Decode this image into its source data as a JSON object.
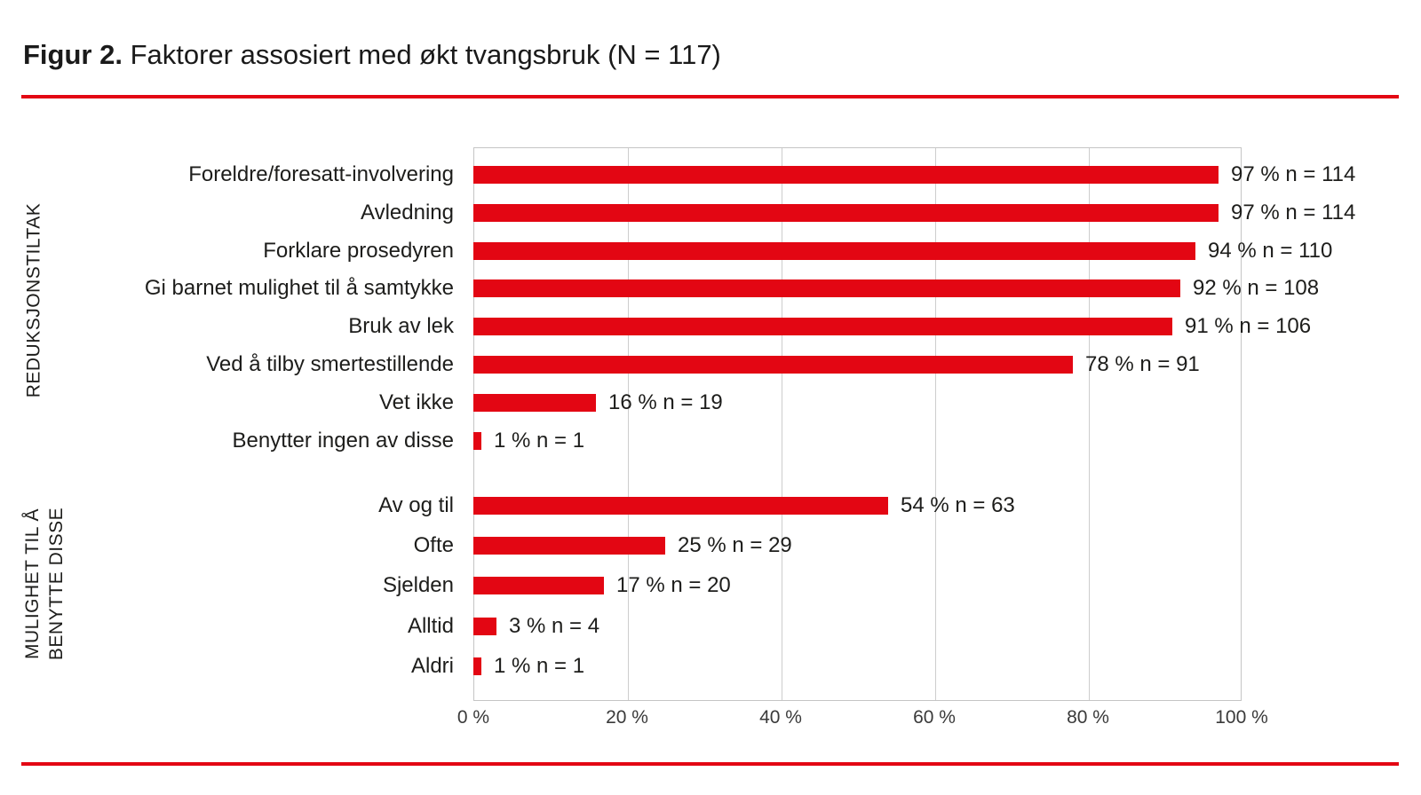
{
  "title": {
    "prefix": "Figur 2.",
    "text": "Faktorer assosiert med økt tvangsbruk (N = 117)"
  },
  "colors": {
    "bar": "#e30613",
    "rule": "#e30613",
    "grid": "#cdcdcd",
    "text": "#1d1d1b"
  },
  "chart_data": {
    "type": "bar",
    "orientation": "horizontal",
    "title": "Figur 2. Faktorer assosiert med økt tvangsbruk (N = 117)",
    "N": 117,
    "xlim": [
      0,
      100
    ],
    "grid": true,
    "x_ticks": [
      {
        "value": 0,
        "label": "0 %"
      },
      {
        "value": 20,
        "label": "20 %"
      },
      {
        "value": 40,
        "label": "40 %"
      },
      {
        "value": 60,
        "label": "60 %"
      },
      {
        "value": 80,
        "label": "80 %"
      },
      {
        "value": 100,
        "label": "100 %"
      }
    ],
    "groups": [
      {
        "name": "REDUKSJONSTILTAK",
        "name_lines": [
          "REDUKSJONSTILTAK"
        ],
        "items": [
          {
            "label": "Foreldre/foresatt-involvering",
            "pct": 97,
            "n": 114,
            "value_label": "97 % n = 114"
          },
          {
            "label": "Avledning",
            "pct": 97,
            "n": 114,
            "value_label": "97 % n = 114"
          },
          {
            "label": "Forklare prosedyren",
            "pct": 94,
            "n": 110,
            "value_label": "94 % n = 110"
          },
          {
            "label": "Gi barnet mulighet til å samtykke",
            "pct": 92,
            "n": 108,
            "value_label": "92 % n = 108"
          },
          {
            "label": "Bruk av lek",
            "pct": 91,
            "n": 106,
            "value_label": "91 % n = 106"
          },
          {
            "label": "Ved å tilby smertestillende",
            "pct": 78,
            "n": 91,
            "value_label": "78 % n = 91"
          },
          {
            "label": "Vet ikke",
            "pct": 16,
            "n": 19,
            "value_label": "16 % n = 19"
          },
          {
            "label": "Benytter ingen av disse",
            "pct": 1,
            "n": 1,
            "value_label": "1 % n = 1"
          }
        ]
      },
      {
        "name": "MULIGHET TIL Å BENYTTE DISSE",
        "name_lines": [
          "MULIGHET TIL Å",
          "BENYTTE DISSE"
        ],
        "items": [
          {
            "label": "Av og til",
            "pct": 54,
            "n": 63,
            "value_label": "54 % n = 63"
          },
          {
            "label": "Ofte",
            "pct": 25,
            "n": 29,
            "value_label": "25 % n = 29"
          },
          {
            "label": "Sjelden",
            "pct": 17,
            "n": 20,
            "value_label": "17 % n = 20"
          },
          {
            "label": "Alltid",
            "pct": 3,
            "n": 4,
            "value_label": "3 % n = 4"
          },
          {
            "label": "Aldri",
            "pct": 1,
            "n": 1,
            "value_label": "1 % n = 1"
          }
        ]
      }
    ]
  }
}
